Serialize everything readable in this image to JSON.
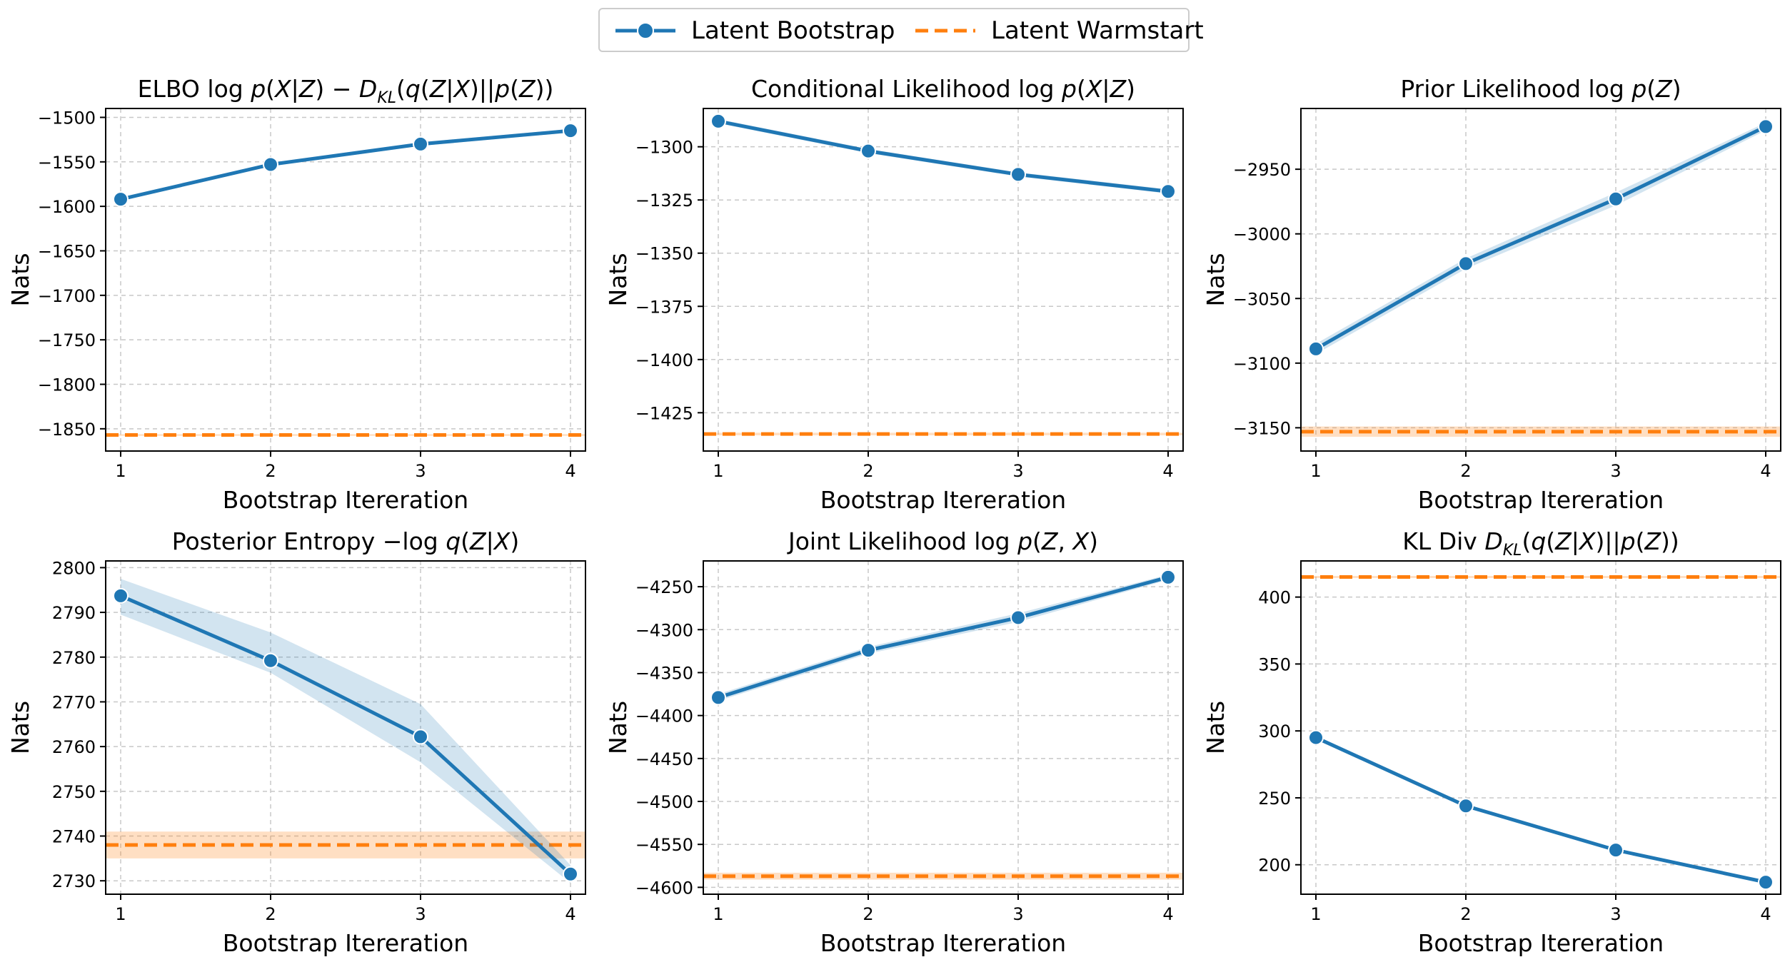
{
  "legend": {
    "bootstrap_label": "Latent Bootstrap",
    "warmstart_label": "Latent Warmstart"
  },
  "colors": {
    "bootstrap": "#1f77b4",
    "warmstart": "#ff7f0e",
    "grid": "#c8c8c8"
  },
  "chart_data": [
    {
      "type": "line",
      "title_parts": [
        {
          "t": "ELBO  log ",
          "s": "n"
        },
        {
          "t": "p",
          "s": "i"
        },
        {
          "t": "(",
          "s": "n"
        },
        {
          "t": "X",
          "s": "i"
        },
        {
          "t": "|",
          "s": "n"
        },
        {
          "t": "Z",
          "s": "i"
        },
        {
          "t": ") − ",
          "s": "n"
        },
        {
          "t": "D",
          "s": "i"
        },
        {
          "t": "KL",
          "s": "sub"
        },
        {
          "t": "(",
          "s": "n"
        },
        {
          "t": "q",
          "s": "i"
        },
        {
          "t": "(",
          "s": "n"
        },
        {
          "t": "Z",
          "s": "i"
        },
        {
          "t": "|",
          "s": "n"
        },
        {
          "t": "X",
          "s": "i"
        },
        {
          "t": ")||",
          "s": "n"
        },
        {
          "t": "p",
          "s": "i"
        },
        {
          "t": "(",
          "s": "n"
        },
        {
          "t": "Z",
          "s": "i"
        },
        {
          "t": "))",
          "s": "n"
        }
      ],
      "xlabel": "Bootstrap Itereration",
      "ylabel": "Nats",
      "x": [
        1,
        2,
        3,
        4
      ],
      "xlim": [
        0.9,
        4.1
      ],
      "ylim": [
        -1875,
        -1490
      ],
      "yticks": [
        -1850,
        -1800,
        -1750,
        -1700,
        -1650,
        -1600,
        -1550,
        -1500
      ],
      "ytick_labels": [
        "−1850",
        "−1800",
        "−1750",
        "−1700",
        "−1650",
        "−1600",
        "−1550",
        "−1500"
      ],
      "series": [
        {
          "name": "Latent Bootstrap",
          "values": [
            -1592,
            -1553,
            -1530,
            -1515
          ],
          "band": [
            2,
            2,
            2,
            2
          ]
        },
        {
          "name": "Latent Warmstart",
          "hline": -1857,
          "band": 1
        }
      ]
    },
    {
      "type": "line",
      "title_parts": [
        {
          "t": "Conditional Likelihood  log ",
          "s": "n"
        },
        {
          "t": "p",
          "s": "i"
        },
        {
          "t": "(",
          "s": "n"
        },
        {
          "t": "X",
          "s": "i"
        },
        {
          "t": "|",
          "s": "n"
        },
        {
          "t": "Z",
          "s": "i"
        },
        {
          "t": ")",
          "s": "n"
        }
      ],
      "xlabel": "Bootstrap Itereration",
      "ylabel": "Nats",
      "x": [
        1,
        2,
        3,
        4
      ],
      "xlim": [
        0.9,
        4.1
      ],
      "ylim": [
        -1443,
        -1282
      ],
      "yticks": [
        -1425,
        -1400,
        -1375,
        -1350,
        -1325,
        -1300
      ],
      "ytick_labels": [
        "−1425",
        "−1400",
        "−1375",
        "−1350",
        "−1325",
        "−1300"
      ],
      "series": [
        {
          "name": "Latent Bootstrap",
          "values": [
            -1288,
            -1302,
            -1313,
            -1321
          ],
          "band": [
            1,
            1,
            1,
            1
          ]
        },
        {
          "name": "Latent Warmstart",
          "hline": -1435,
          "band": 0.6
        }
      ]
    },
    {
      "type": "line",
      "title_parts": [
        {
          "t": "Prior Likelihood  log ",
          "s": "n"
        },
        {
          "t": "p",
          "s": "i"
        },
        {
          "t": "(",
          "s": "n"
        },
        {
          "t": "Z",
          "s": "i"
        },
        {
          "t": ")",
          "s": "n"
        }
      ],
      "xlabel": "Bootstrap Itereration",
      "ylabel": "Nats",
      "x": [
        1,
        2,
        3,
        4
      ],
      "xlim": [
        0.9,
        4.1
      ],
      "ylim": [
        -3168,
        -2903
      ],
      "yticks": [
        -3150,
        -3100,
        -3050,
        -3000,
        -2950
      ],
      "ytick_labels": [
        "−3150",
        "−3100",
        "−3050",
        "−3000",
        "−2950"
      ],
      "series": [
        {
          "name": "Latent Bootstrap",
          "values": [
            -3089,
            -3023,
            -2973,
            -2917
          ],
          "band": [
            4,
            4,
            5,
            3
          ]
        },
        {
          "name": "Latent Warmstart",
          "hline": -3153,
          "band": 4
        }
      ]
    },
    {
      "type": "line",
      "title_parts": [
        {
          "t": "Posterior Entropy  −log ",
          "s": "n"
        },
        {
          "t": "q",
          "s": "i"
        },
        {
          "t": "(",
          "s": "n"
        },
        {
          "t": "Z",
          "s": "i"
        },
        {
          "t": "|",
          "s": "n"
        },
        {
          "t": "X",
          "s": "i"
        },
        {
          "t": ")",
          "s": "n"
        }
      ],
      "xlabel": "Bootstrap Itereration",
      "ylabel": "Nats",
      "x": [
        1,
        2,
        3,
        4
      ],
      "xlim": [
        0.9,
        4.1
      ],
      "ylim": [
        2727,
        2801.5
      ],
      "yticks": [
        2730,
        2740,
        2750,
        2760,
        2770,
        2780,
        2790,
        2800
      ],
      "ytick_labels": [
        "2730",
        "2740",
        "2750",
        "2760",
        "2770",
        "2780",
        "2790",
        "2800"
      ],
      "series": [
        {
          "name": "Latent Bootstrap",
          "values": [
            2793.7,
            2779.2,
            2762.2,
            2731.5
          ],
          "band_low": [
            2789.5,
            2776.5,
            2756.5,
            2729.5
          ],
          "band_high": [
            2797.5,
            2785.5,
            2769.5,
            2733.5
          ]
        },
        {
          "name": "Latent Warmstart",
          "hline": 2738,
          "band": 3
        }
      ]
    },
    {
      "type": "line",
      "title_parts": [
        {
          "t": "Joint Likelihood  log ",
          "s": "n"
        },
        {
          "t": "p",
          "s": "i"
        },
        {
          "t": "(",
          "s": "n"
        },
        {
          "t": "Z",
          "s": "i"
        },
        {
          "t": ", ",
          "s": "n"
        },
        {
          "t": "X",
          "s": "i"
        },
        {
          "t": ")",
          "s": "n"
        }
      ],
      "xlabel": "Bootstrap Itereration",
      "ylabel": "Nats",
      "x": [
        1,
        2,
        3,
        4
      ],
      "xlim": [
        0.9,
        4.1
      ],
      "ylim": [
        -4608,
        -4220
      ],
      "yticks": [
        -4600,
        -4550,
        -4500,
        -4450,
        -4400,
        -4350,
        -4300,
        -4250
      ],
      "ytick_labels": [
        "−4600",
        "−4550",
        "−4500",
        "−4450",
        "−4400",
        "−4350",
        "−4300",
        "−4250"
      ],
      "series": [
        {
          "name": "Latent Bootstrap",
          "values": [
            -4379,
            -4324,
            -4286,
            -4239
          ],
          "band": [
            4,
            4,
            5,
            3
          ]
        },
        {
          "name": "Latent Warmstart",
          "hline": -4587,
          "band": 4
        }
      ]
    },
    {
      "type": "line",
      "title_parts": [
        {
          "t": "KL Div  ",
          "s": "n"
        },
        {
          "t": "D",
          "s": "i"
        },
        {
          "t": "KL",
          "s": "sub"
        },
        {
          "t": "(",
          "s": "n"
        },
        {
          "t": "q",
          "s": "i"
        },
        {
          "t": "(",
          "s": "n"
        },
        {
          "t": "Z",
          "s": "i"
        },
        {
          "t": "|",
          "s": "n"
        },
        {
          "t": "X",
          "s": "i"
        },
        {
          "t": ")||",
          "s": "n"
        },
        {
          "t": "p",
          "s": "i"
        },
        {
          "t": "(",
          "s": "n"
        },
        {
          "t": "Z",
          "s": "i"
        },
        {
          "t": "))",
          "s": "n"
        }
      ],
      "xlabel": "Bootstrap Itereration",
      "ylabel": "Nats",
      "x": [
        1,
        2,
        3,
        4
      ],
      "xlim": [
        0.9,
        4.1
      ],
      "ylim": [
        178,
        427
      ],
      "yticks": [
        200,
        250,
        300,
        350,
        400
      ],
      "ytick_labels": [
        "200",
        "250",
        "300",
        "350",
        "400"
      ],
      "series": [
        {
          "name": "Latent Bootstrap",
          "values": [
            295,
            244,
            211,
            187
          ],
          "band": [
            1,
            1,
            1,
            1
          ]
        },
        {
          "name": "Latent Warmstart",
          "hline": 415,
          "band": 0.8
        }
      ]
    }
  ]
}
